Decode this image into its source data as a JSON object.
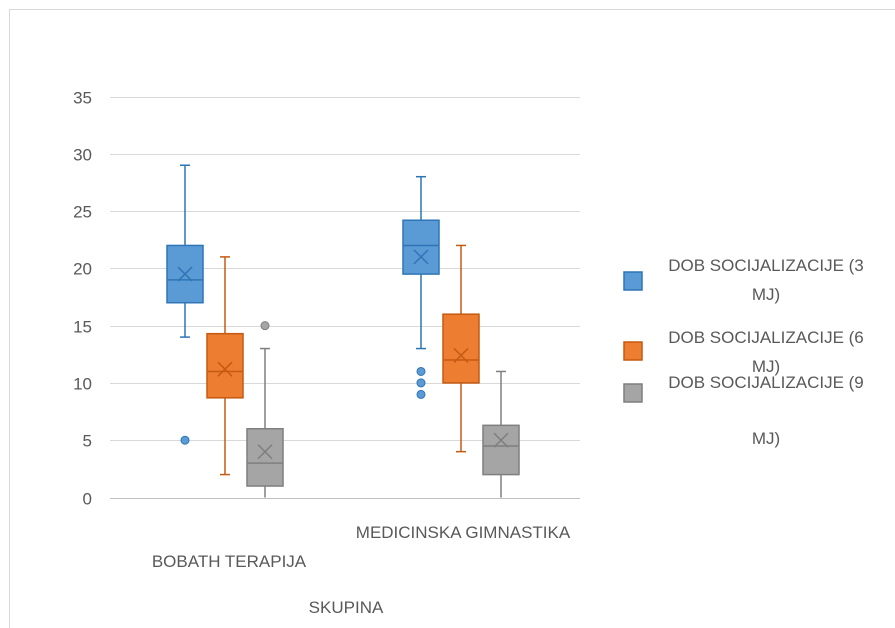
{
  "chart_data": {
    "type": "box",
    "xlabel": "SKUPINA",
    "ylabel": "",
    "ylim": [
      0,
      35
    ],
    "yticks": [
      0,
      5,
      10,
      15,
      20,
      25,
      30,
      35
    ],
    "grid": true,
    "legend_position": "right",
    "categories": [
      "BOBATH TERAPIJA",
      "MEDICINSKA GIMNASTIKA"
    ],
    "series": [
      {
        "name": "DOB SOCIJALIZACIJE (3 MJ)",
        "color": "#5b9bd5",
        "stroke": "#2e75b6",
        "boxes": [
          {
            "min": 14,
            "q1": 17,
            "median": 19,
            "q3": 22,
            "max": 29,
            "mean": 19.5,
            "outliers": [
              5
            ]
          },
          {
            "min": 13,
            "q1": 19.5,
            "median": 22,
            "q3": 24.2,
            "max": 28,
            "mean": 21,
            "outliers": [
              11,
              10,
              9
            ]
          }
        ]
      },
      {
        "name": "DOB SOCIJALIZACIJE (6 MJ)",
        "color": "#ed7d31",
        "stroke": "#c55a11",
        "boxes": [
          {
            "min": 2,
            "q1": 8.7,
            "median": 11,
            "q3": 14.3,
            "max": 21,
            "mean": 11.2,
            "outliers": []
          },
          {
            "min": 4,
            "q1": 10,
            "median": 12,
            "q3": 16,
            "max": 22,
            "mean": 12.4,
            "outliers": []
          }
        ]
      },
      {
        "name": "DOB SOCIJALIZACIJE (9 MJ)",
        "color": "#a5a5a5",
        "stroke": "#7f7f7f",
        "boxes": [
          {
            "min": 0,
            "q1": 1,
            "median": 3,
            "q3": 6,
            "max": 13,
            "mean": 4,
            "outliers": [
              15
            ]
          },
          {
            "min": 0,
            "q1": 2,
            "median": 4.5,
            "q3": 6.3,
            "max": 11,
            "mean": 5,
            "outliers": []
          }
        ]
      }
    ],
    "legend": [
      {
        "line1": "DOB SOCIJALIZACIJE (3",
        "line2": "MJ)"
      },
      {
        "line1": "DOB SOCIJALIZACIJE (6",
        "line2": "MJ)"
      },
      {
        "line1": "DOB SOCIJALIZACIJE (9",
        "line2": "MJ)"
      }
    ]
  }
}
